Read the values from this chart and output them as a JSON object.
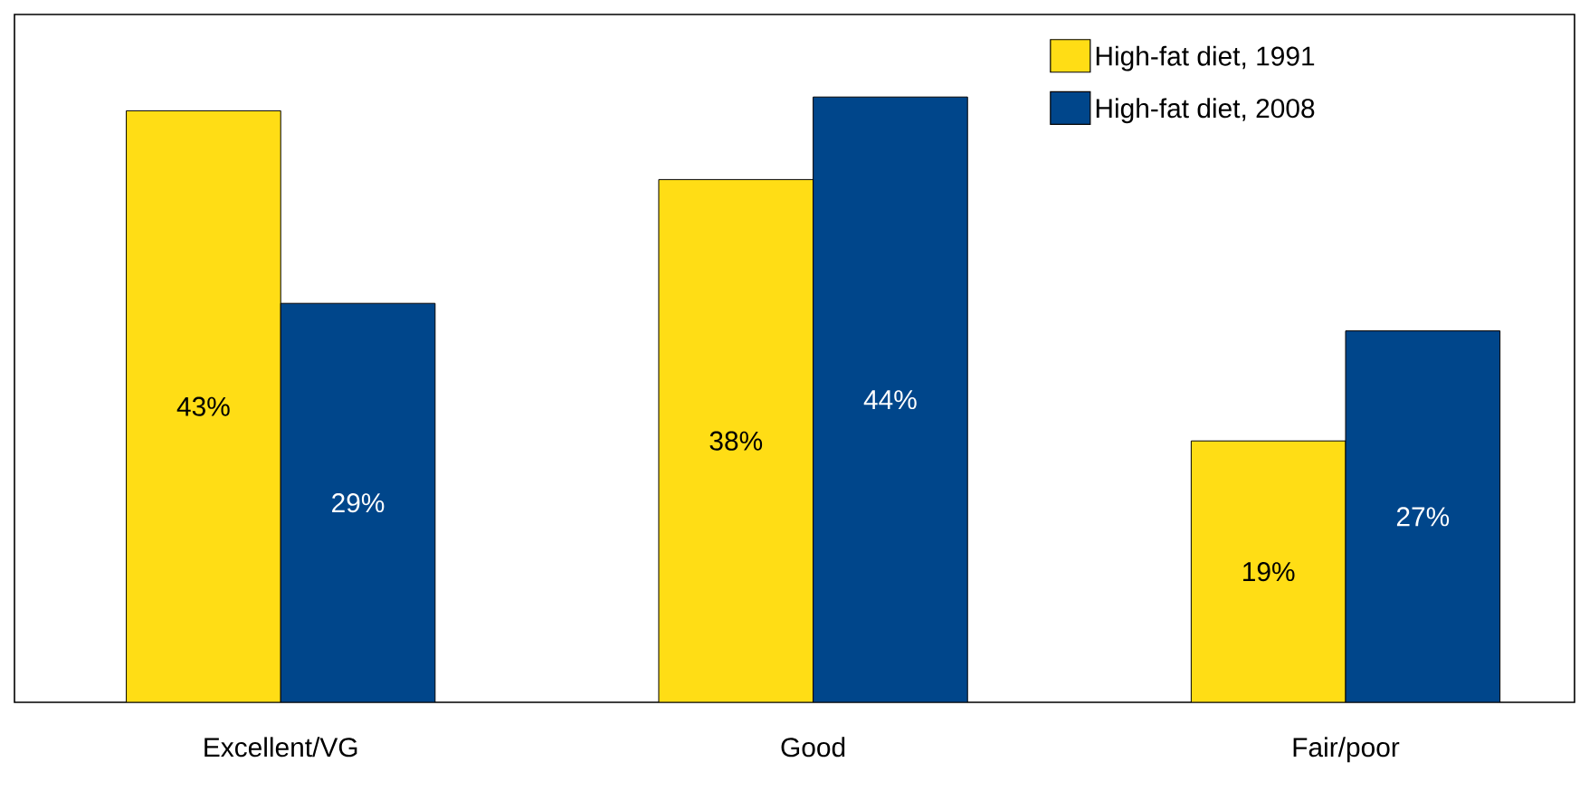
{
  "chart_data": {
    "type": "bar",
    "categories": [
      "Excellent/VG",
      "Good",
      "Fair/poor"
    ],
    "series": [
      {
        "name": "High-fat diet, 1991",
        "color": "#ffdd15",
        "values": [
          43,
          38,
          19
        ],
        "value_labels": [
          "43%",
          "38%",
          "19%"
        ]
      },
      {
        "name": "High-fat diet, 2008",
        "color": "#00468b",
        "values": [
          29,
          44,
          27
        ],
        "value_labels": [
          "29%",
          "44%",
          "27%"
        ]
      }
    ],
    "ylim": [
      0,
      50
    ],
    "tick_labels": "x",
    "legend": "top right",
    "grid": false
  }
}
